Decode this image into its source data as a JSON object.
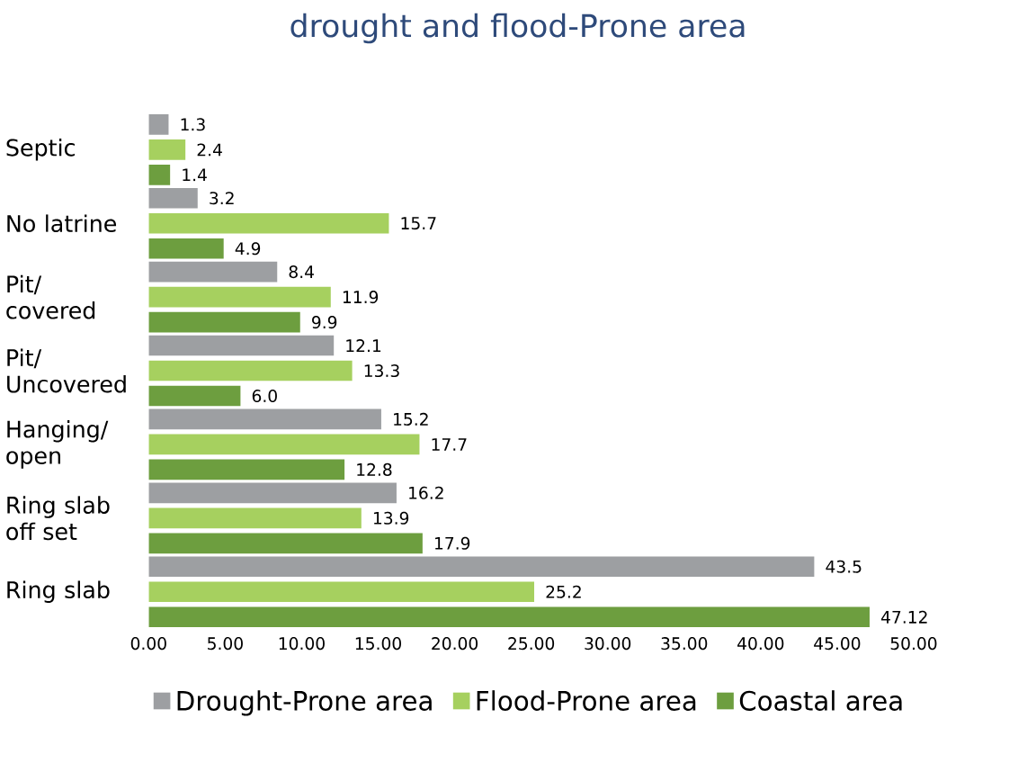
{
  "chart_data": {
    "type": "bar",
    "orientation": "horizontal",
    "title": "drought and flood-Prone area",
    "categories": [
      "Septic",
      "No latrine",
      "Pit/ covered",
      "Pit/ Uncovered",
      "Hanging/ open",
      "Ring slab off set",
      "Ring slab"
    ],
    "series": [
      {
        "name": "Drought-Prone area",
        "color": "#9d9fa2",
        "values": [
          1.3,
          3.2,
          8.4,
          12.1,
          15.2,
          16.2,
          43.5
        ],
        "value_labels": [
          "1.3",
          "3.2",
          "8.4",
          "12.1",
          "15.2",
          "16.2",
          "43.5"
        ]
      },
      {
        "name": "Flood-Prone area",
        "color": "#a6d05f",
        "values": [
          2.4,
          15.7,
          11.9,
          13.3,
          17.7,
          13.9,
          25.2
        ],
        "value_labels": [
          "2.4",
          "15.7",
          "11.9",
          "13.3",
          "17.7",
          "13.9",
          "25.2"
        ]
      },
      {
        "name": "Coastal area",
        "color": "#6d9e3f",
        "values": [
          1.4,
          4.9,
          9.9,
          6.0,
          12.8,
          17.9,
          47.12
        ],
        "value_labels": [
          "1.4",
          "4.9",
          "9.9",
          "6.0",
          "12.8",
          "17.9",
          "47.12"
        ]
      }
    ],
    "xlim": [
      0,
      50
    ],
    "xticks": [
      {
        "value": 0,
        "label": "0.00"
      },
      {
        "value": 5,
        "label": "5.00"
      },
      {
        "value": 10,
        "label": "10.00"
      },
      {
        "value": 15,
        "label": "15.00"
      },
      {
        "value": 20,
        "label": "20.00"
      },
      {
        "value": 25,
        "label": "25.00"
      },
      {
        "value": 30,
        "label": "30.00"
      },
      {
        "value": 35,
        "label": "35.00"
      },
      {
        "value": 40,
        "label": "40.00"
      },
      {
        "value": 45,
        "label": "45.00"
      },
      {
        "value": 50,
        "label": "50.00"
      }
    ],
    "grid": false,
    "legend": "bottom"
  }
}
